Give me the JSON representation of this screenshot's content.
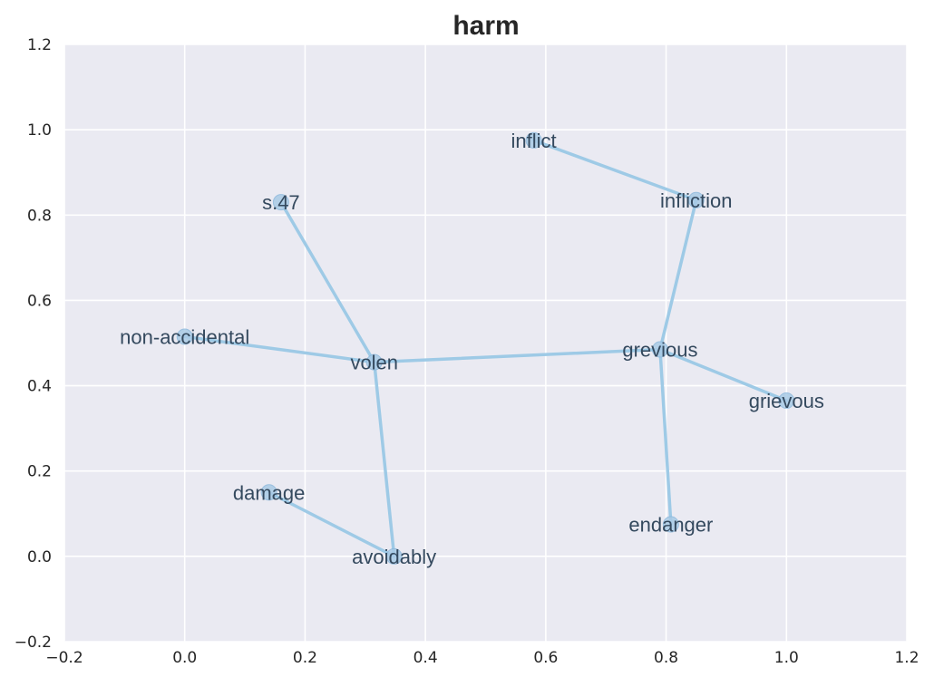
{
  "chart_data": {
    "type": "scatter",
    "title": "harm",
    "xlabel": "",
    "ylabel": "",
    "xlim": [
      -0.2,
      1.2
    ],
    "ylim": [
      -0.2,
      1.2
    ],
    "xticks": [
      "−0.2",
      "0.0",
      "0.2",
      "0.4",
      "0.6",
      "0.8",
      "1.0",
      "1.2"
    ],
    "yticks": [
      "−0.2",
      "0.0",
      "0.2",
      "0.4",
      "0.6",
      "0.8",
      "1.0",
      "1.2"
    ],
    "xtick_values": [
      -0.2,
      0.0,
      0.2,
      0.4,
      0.6,
      0.8,
      1.0,
      1.2
    ],
    "ytick_values": [
      -0.2,
      0.0,
      0.2,
      0.4,
      0.6,
      0.8,
      1.0,
      1.2
    ],
    "grid": true,
    "points": [
      {
        "label": "inflict",
        "x": 0.58,
        "y": 0.975
      },
      {
        "label": "infliction",
        "x": 0.85,
        "y": 0.835
      },
      {
        "label": "s.47",
        "x": 0.16,
        "y": 0.83
      },
      {
        "label": "non-accidental",
        "x": 0.0,
        "y": 0.515
      },
      {
        "label": "volen",
        "x": 0.315,
        "y": 0.455
      },
      {
        "label": "grevious",
        "x": 0.79,
        "y": 0.485
      },
      {
        "label": "grievous",
        "x": 1.0,
        "y": 0.365
      },
      {
        "label": "damage",
        "x": 0.14,
        "y": 0.15
      },
      {
        "label": "avoidably",
        "x": 0.348,
        "y": 0.0
      },
      {
        "label": "endanger",
        "x": 0.808,
        "y": 0.075
      }
    ],
    "edges": [
      [
        "inflict",
        "infliction"
      ],
      [
        "infliction",
        "grevious"
      ],
      [
        "grevious",
        "grievous"
      ],
      [
        "grevious",
        "endanger"
      ],
      [
        "grevious",
        "volen"
      ],
      [
        "volen",
        "s.47"
      ],
      [
        "volen",
        "non-accidental"
      ],
      [
        "volen",
        "avoidably"
      ],
      [
        "avoidably",
        "damage"
      ]
    ]
  }
}
